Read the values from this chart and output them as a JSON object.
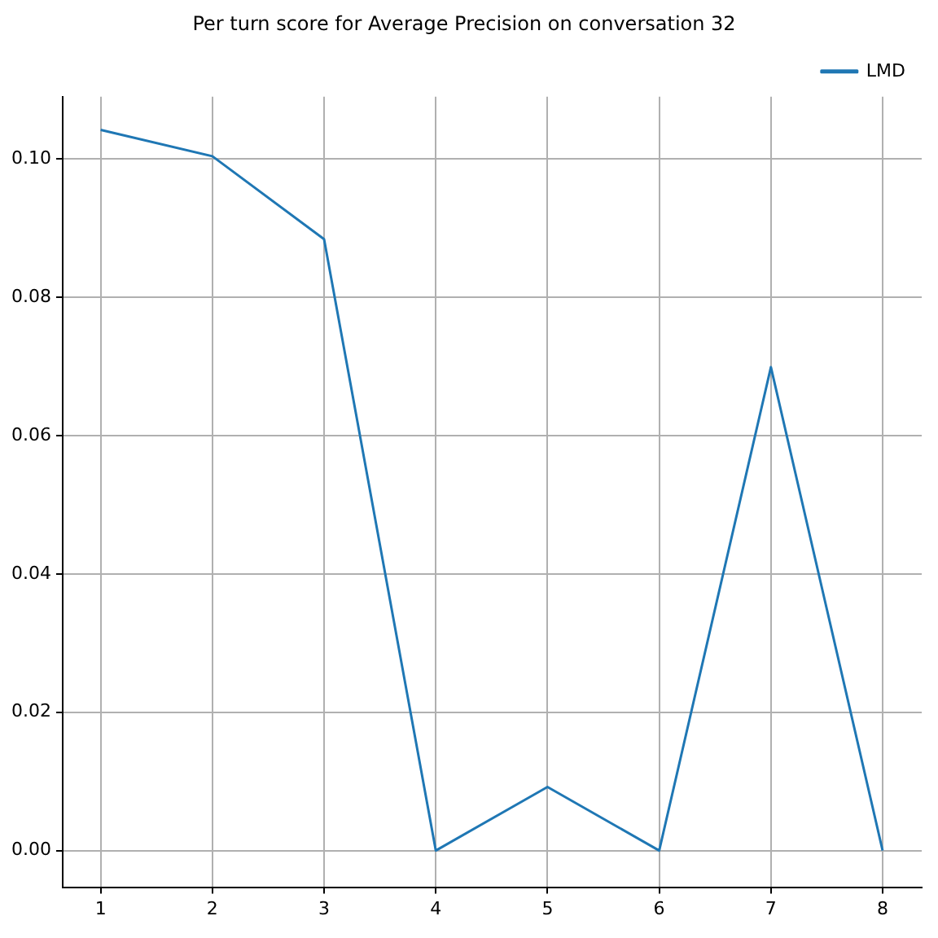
{
  "chart_data": {
    "type": "line",
    "title": "Per turn score for Average Precision on conversation 32",
    "x": [
      1,
      2,
      3,
      4,
      5,
      6,
      7,
      8
    ],
    "series": [
      {
        "name": "LMD",
        "color": "#1f77b4",
        "values": [
          0.1042,
          0.1004,
          0.0884,
          0,
          0.0092,
          0,
          0.0699,
          0
        ]
      }
    ],
    "xlim": [
      0.66,
      8.35
    ],
    "xticks": [
      1,
      2,
      3,
      4,
      5,
      6,
      7,
      8
    ],
    "ylim": [
      -0.0053,
      0.109
    ],
    "yticks": [
      {
        "value": 0,
        "label": "0.00"
      },
      {
        "value": 0.02,
        "label": "0.02"
      },
      {
        "value": 0.04,
        "label": "0.04"
      },
      {
        "value": 0.06,
        "label": "0.06"
      },
      {
        "value": 0.08,
        "label": "0.08"
      },
      {
        "value": 0.1,
        "label": "0.10"
      }
    ],
    "grid": true,
    "legend": "top right",
    "marker": "none",
    "line_style": "solid"
  }
}
